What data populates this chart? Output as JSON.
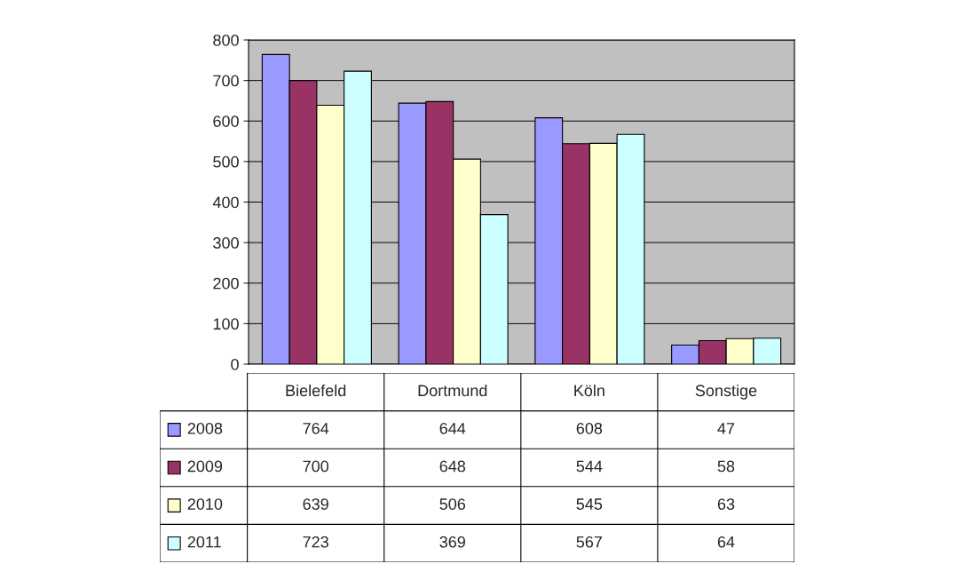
{
  "chart_data": {
    "type": "bar",
    "categories": [
      "Bielefeld",
      "Dortmund",
      "Köln",
      "Sonstige"
    ],
    "series": [
      {
        "name": "2008",
        "color": "#9999ff",
        "values": [
          764,
          644,
          608,
          47
        ]
      },
      {
        "name": "2009",
        "color": "#993366",
        "values": [
          700,
          648,
          544,
          58
        ]
      },
      {
        "name": "2010",
        "color": "#ffffcc",
        "values": [
          639,
          506,
          545,
          63
        ]
      },
      {
        "name": "2011",
        "color": "#ccffff",
        "values": [
          723,
          369,
          567,
          64
        ]
      }
    ],
    "ylim": [
      0,
      800
    ],
    "yticks": [
      0,
      100,
      200,
      300,
      400,
      500,
      600,
      700,
      800
    ],
    "grid": "y",
    "legend": "bottom",
    "data_labels": true
  }
}
